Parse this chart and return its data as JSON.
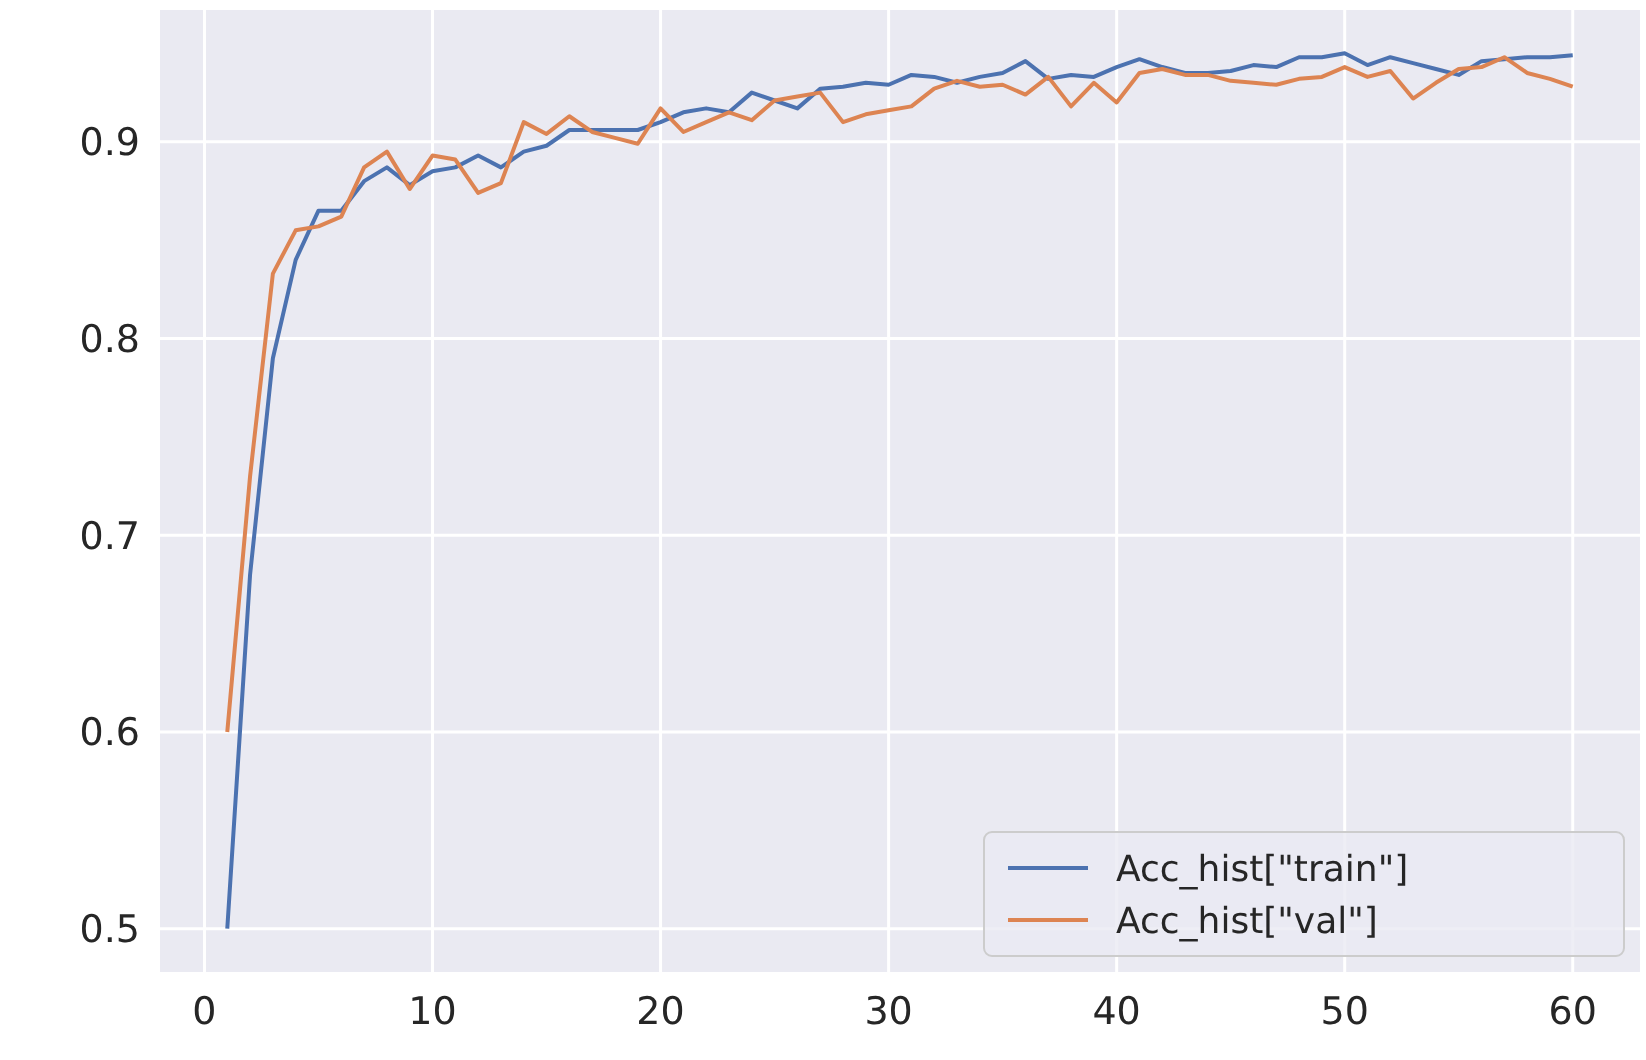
{
  "chart_data": {
    "type": "line",
    "x": [
      1,
      2,
      3,
      4,
      5,
      6,
      7,
      8,
      9,
      10,
      11,
      12,
      13,
      14,
      15,
      16,
      17,
      18,
      19,
      20,
      21,
      22,
      23,
      24,
      25,
      26,
      27,
      28,
      29,
      30,
      31,
      32,
      33,
      34,
      35,
      36,
      37,
      38,
      39,
      40,
      41,
      42,
      43,
      44,
      45,
      46,
      47,
      48,
      49,
      50,
      51,
      52,
      53,
      54,
      55,
      56,
      57,
      58,
      59,
      60
    ],
    "series": [
      {
        "name": "Acc_hist[\"train\"]",
        "color": "#4c72b0",
        "values": [
          0.5,
          0.68,
          0.79,
          0.84,
          0.865,
          0.865,
          0.88,
          0.887,
          0.878,
          0.885,
          0.887,
          0.893,
          0.887,
          0.895,
          0.898,
          0.906,
          0.906,
          0.906,
          0.906,
          0.91,
          0.915,
          0.917,
          0.915,
          0.925,
          0.921,
          0.917,
          0.927,
          0.928,
          0.93,
          0.929,
          0.934,
          0.933,
          0.93,
          0.933,
          0.935,
          0.941,
          0.932,
          0.934,
          0.933,
          0.938,
          0.942,
          0.938,
          0.935,
          0.935,
          0.936,
          0.939,
          0.938,
          0.943,
          0.943,
          0.945,
          0.939,
          0.943,
          0.94,
          0.937,
          0.934,
          0.941,
          0.942,
          0.943,
          0.943,
          0.944
        ]
      },
      {
        "name": "Acc_hist[\"val\"]",
        "color": "#dd8452",
        "values": [
          0.6,
          0.73,
          0.833,
          0.855,
          0.857,
          0.862,
          0.887,
          0.895,
          0.876,
          0.893,
          0.891,
          0.874,
          0.879,
          0.91,
          0.904,
          0.913,
          0.905,
          0.902,
          0.899,
          0.917,
          0.905,
          0.91,
          0.915,
          0.911,
          0.921,
          0.923,
          0.925,
          0.91,
          0.914,
          0.916,
          0.918,
          0.927,
          0.931,
          0.928,
          0.929,
          0.924,
          0.933,
          0.918,
          0.93,
          0.92,
          0.935,
          0.937,
          0.934,
          0.934,
          0.931,
          0.93,
          0.929,
          0.932,
          0.933,
          0.938,
          0.933,
          0.936,
          0.922,
          0.93,
          0.937,
          0.938,
          0.943,
          0.935,
          0.932,
          0.928
        ]
      }
    ],
    "xlim": [
      -1.95,
      62.95
    ],
    "xticks": [
      0,
      10,
      20,
      30,
      40,
      50,
      60
    ],
    "ylim": [
      0.478,
      0.967
    ],
    "yticks": [
      0.5,
      0.6,
      0.7,
      0.8,
      0.9
    ],
    "grid": true,
    "legend": "bottom right",
    "line_style": "solid",
    "marker": "none"
  }
}
